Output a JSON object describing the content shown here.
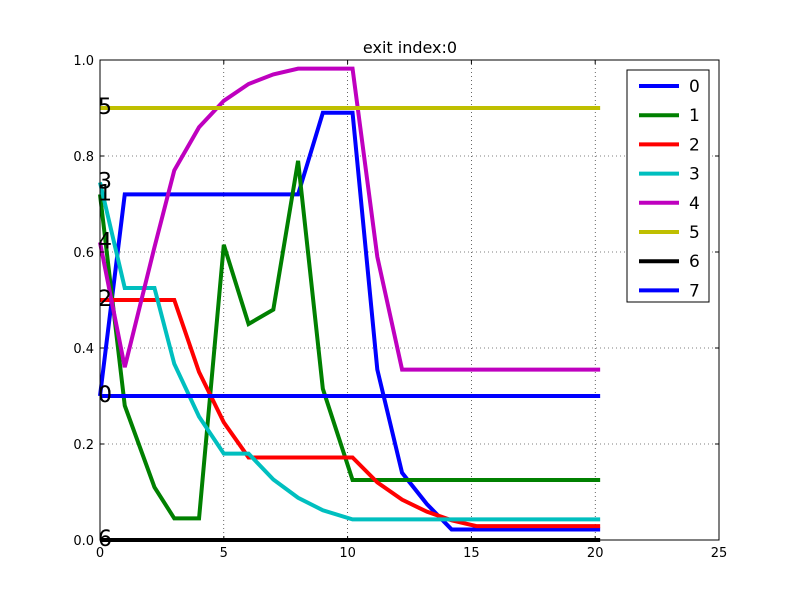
{
  "chart_data": {
    "type": "line",
    "title": "exit index:0",
    "xlabel": "",
    "ylabel": "",
    "xlim": [
      0,
      25
    ],
    "ylim": [
      0.0,
      1.0
    ],
    "xticks": [
      0,
      5,
      10,
      15,
      20,
      25
    ],
    "xtick_labels": [
      "0",
      "5",
      "10",
      "15",
      "20",
      "25"
    ],
    "yticks": [
      0.0,
      0.2,
      0.4,
      0.6,
      0.8,
      1.0
    ],
    "ytick_labels": [
      "0.0",
      "0.2",
      "0.4",
      "0.6",
      "0.8",
      "1.0"
    ],
    "grid": true,
    "legend_position": "top-right",
    "series": [
      {
        "name": "0",
        "color": "#0000ff",
        "label": "0",
        "x": [
          0,
          1,
          2,
          3,
          4,
          5,
          6,
          7,
          8,
          9,
          10.2,
          11.2,
          12.2,
          13.2,
          14.2,
          15.2,
          16.2,
          17.2,
          18.2,
          19.2,
          20.2
        ],
        "y": [
          0.3,
          0.72,
          0.72,
          0.72,
          0.72,
          0.72,
          0.72,
          0.72,
          0.72,
          0.89,
          0.89,
          0.355,
          0.14,
          0.075,
          0.022,
          0.022,
          0.022,
          0.022,
          0.022,
          0.022,
          0.022
        ]
      },
      {
        "name": "1",
        "color": "#008000",
        "label": "1",
        "x": [
          0,
          1,
          2.2,
          3,
          4,
          5,
          6,
          7,
          8,
          9,
          10.2,
          11.2,
          12.2,
          13.2,
          14.2,
          15.2,
          16.2,
          17.2,
          18.2,
          19.2,
          20.2
        ],
        "y": [
          0.72,
          0.28,
          0.11,
          0.045,
          0.045,
          0.615,
          0.45,
          0.48,
          0.79,
          0.315,
          0.125,
          0.125,
          0.125,
          0.125,
          0.125,
          0.125,
          0.125,
          0.125,
          0.125,
          0.125,
          0.125
        ]
      },
      {
        "name": "2",
        "color": "#ff0000",
        "label": "2",
        "x": [
          0,
          1,
          2,
          3,
          4,
          5,
          6,
          7,
          8,
          9,
          10.2,
          11.2,
          12.2,
          13.2,
          14.2,
          15.2,
          16.2,
          17.2,
          18.2,
          19.2,
          20.2
        ],
        "y": [
          0.5,
          0.5,
          0.5,
          0.5,
          0.35,
          0.245,
          0.172,
          0.172,
          0.172,
          0.172,
          0.172,
          0.12,
          0.084,
          0.059,
          0.041,
          0.029,
          0.029,
          0.029,
          0.029,
          0.029,
          0.029
        ]
      },
      {
        "name": "3",
        "color": "#00bfbf",
        "label": "3",
        "x": [
          0,
          1,
          2.2,
          3,
          4,
          5,
          6,
          7,
          8,
          9,
          10.2,
          11.2,
          12.2,
          13.2,
          14.2,
          15.2,
          16.2,
          17.2,
          18.2,
          19.2,
          20.2
        ],
        "y": [
          0.745,
          0.525,
          0.525,
          0.367,
          0.257,
          0.18,
          0.18,
          0.126,
          0.088,
          0.062,
          0.043,
          0.043,
          0.043,
          0.043,
          0.043,
          0.043,
          0.043,
          0.043,
          0.043,
          0.043,
          0.043
        ]
      },
      {
        "name": "4",
        "color": "#bf00bf",
        "label": "4",
        "x": [
          0,
          1,
          2.2,
          3,
          4,
          5,
          6,
          7,
          8,
          9,
          10.2,
          11.2,
          12.2,
          13.2,
          14.2,
          15.2,
          16.2,
          17.2,
          18.2,
          19.2,
          20.2
        ],
        "y": [
          0.62,
          0.36,
          0.61,
          0.77,
          0.86,
          0.915,
          0.95,
          0.97,
          0.982,
          0.982,
          0.982,
          0.59,
          0.355,
          0.355,
          0.355,
          0.355,
          0.355,
          0.355,
          0.355,
          0.355,
          0.355
        ]
      },
      {
        "name": "5",
        "color": "#bfbf00",
        "label": "5",
        "x": [
          0,
          20.2
        ],
        "y": [
          0.9,
          0.9
        ]
      },
      {
        "name": "6",
        "color": "#000000",
        "label": "6",
        "x": [
          0,
          20.2
        ],
        "y": [
          0.0,
          0.0
        ]
      },
      {
        "name": "7",
        "color": "#0000ff",
        "label": "0",
        "x": [
          0,
          20.2
        ],
        "y": [
          0.3,
          0.3
        ]
      }
    ]
  }
}
